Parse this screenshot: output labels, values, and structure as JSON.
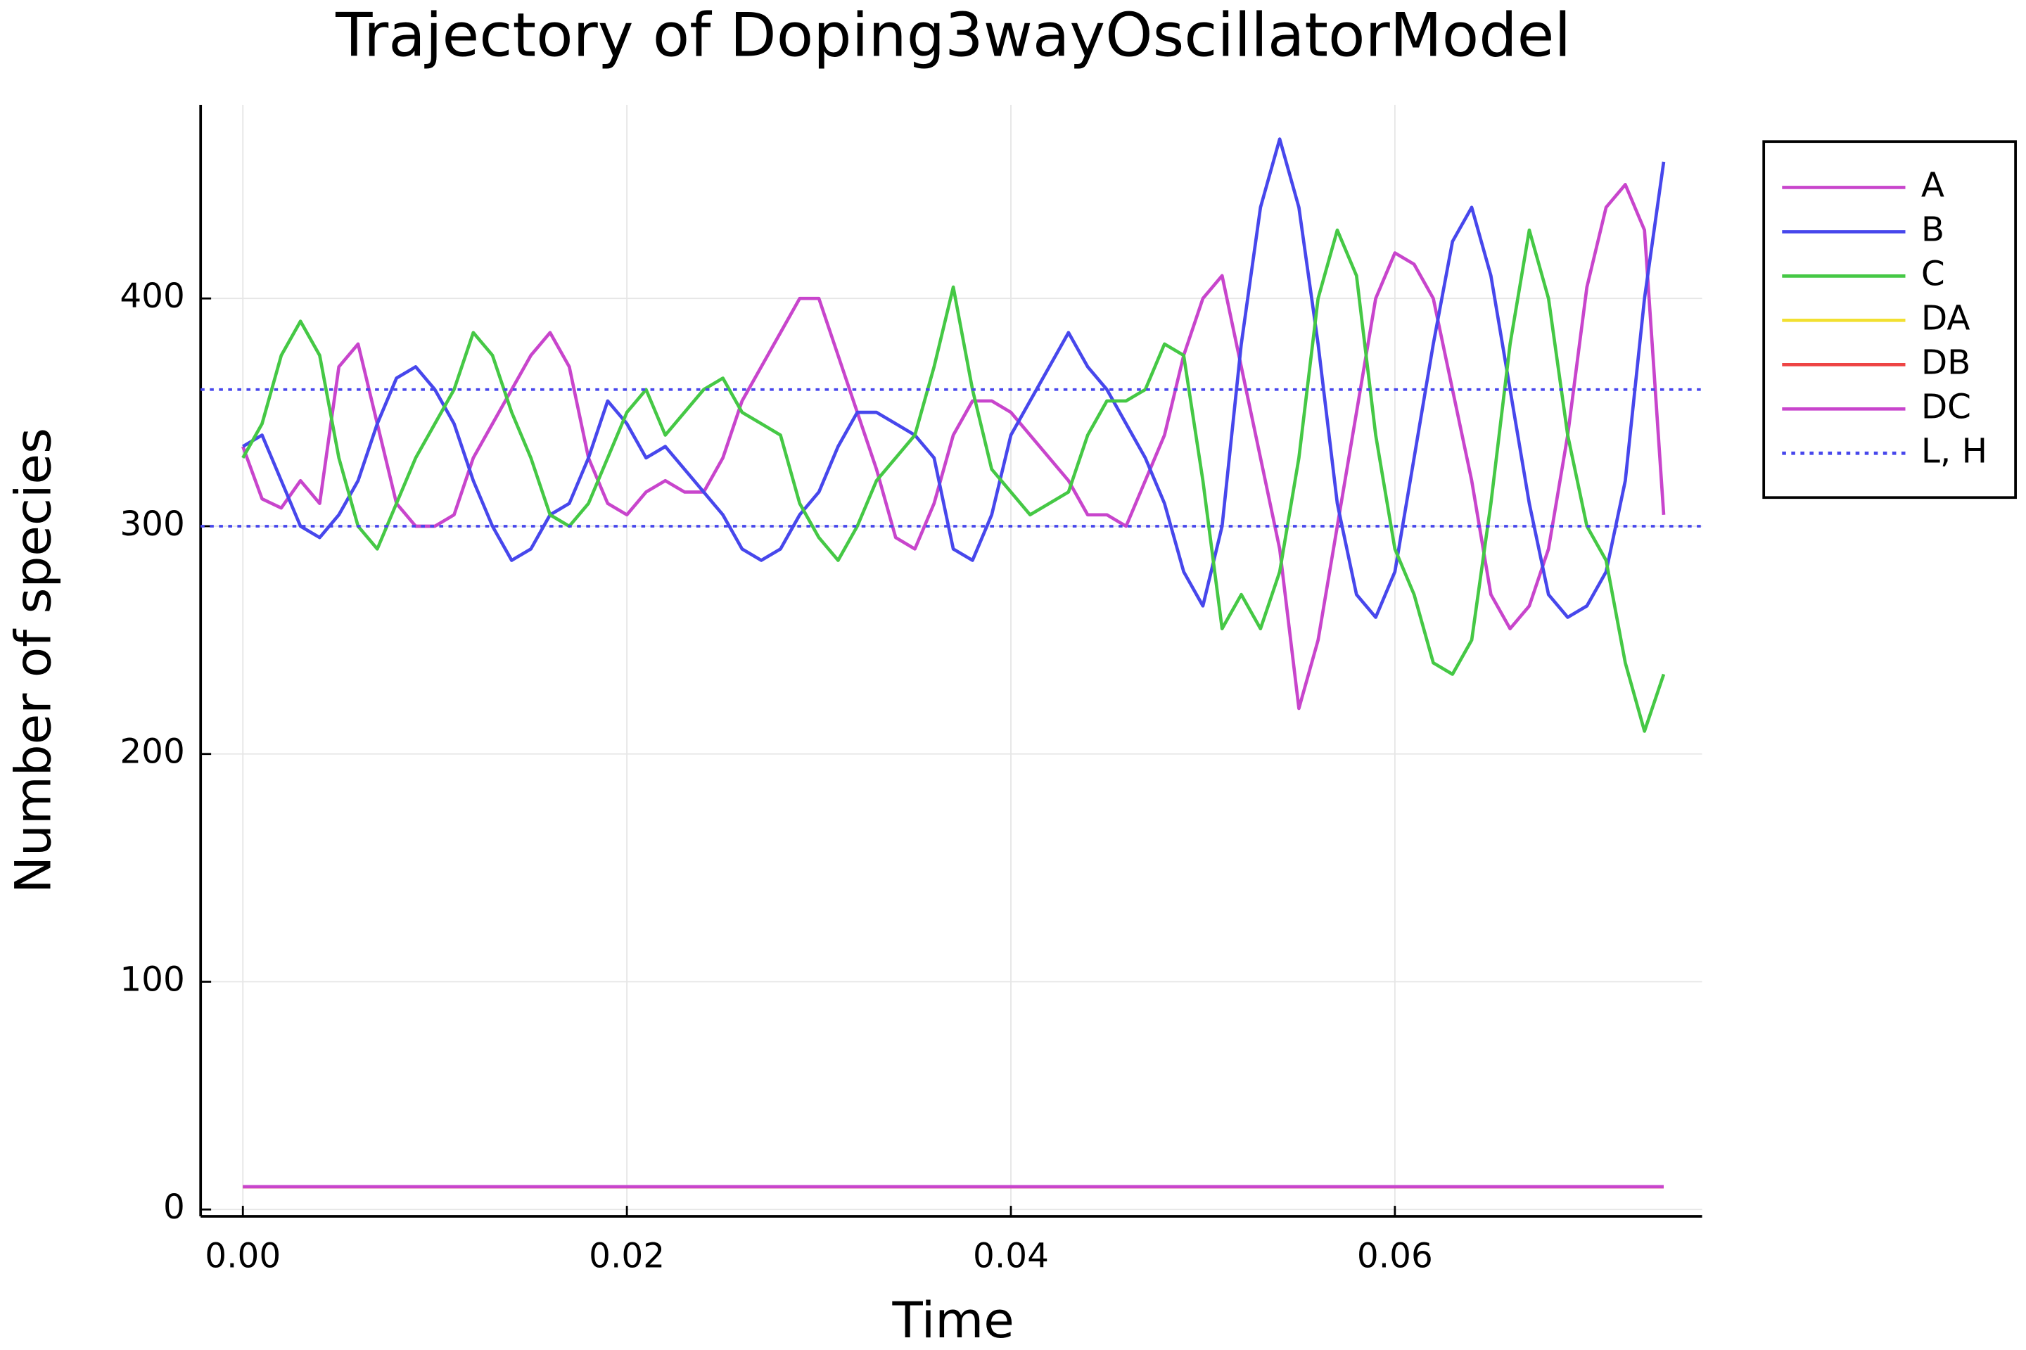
{
  "chart_data": {
    "type": "line",
    "title": "Trajectory of Doping3wayOscillatorModel",
    "x_label": "Time",
    "y_label": "Number of species",
    "x": [
      0,
      0.001,
      0.002,
      0.003,
      0.004,
      0.005,
      0.006,
      0.007,
      0.008,
      0.009,
      0.01,
      0.011,
      0.012,
      0.013,
      0.014,
      0.015,
      0.016,
      0.017,
      0.018,
      0.019,
      0.02,
      0.021,
      0.022,
      0.023,
      0.024,
      0.025,
      0.026,
      0.027,
      0.028,
      0.029,
      0.03,
      0.031,
      0.032,
      0.033,
      0.034,
      0.035,
      0.036,
      0.037,
      0.038,
      0.039,
      0.04,
      0.041,
      0.042,
      0.043,
      0.044,
      0.045,
      0.046,
      0.047,
      0.048,
      0.049,
      0.05,
      0.051,
      0.052,
      0.053,
      0.054,
      0.055,
      0.056,
      0.057,
      0.058,
      0.059,
      0.06,
      0.061,
      0.062,
      0.063,
      0.064,
      0.065,
      0.066,
      0.067,
      0.068,
      0.069,
      0.07,
      0.071,
      0.072,
      0.073,
      0.074
    ],
    "series": [
      {
        "name": "A",
        "color": "#c845cc",
        "values": [
          335,
          312,
          308,
          320,
          310,
          370,
          380,
          345,
          310,
          300,
          300,
          305,
          330,
          345,
          360,
          375,
          385,
          370,
          330,
          310,
          305,
          315,
          320,
          315,
          315,
          330,
          355,
          370,
          385,
          400,
          400,
          375,
          350,
          325,
          295,
          290,
          310,
          340,
          355,
          355,
          350,
          340,
          330,
          320,
          305,
          305,
          300,
          320,
          340,
          375,
          400,
          410,
          370,
          330,
          290,
          220,
          250,
          300,
          350,
          400,
          420,
          415,
          400,
          360,
          320,
          270,
          255,
          265,
          290,
          340,
          405,
          440,
          450,
          430,
          305
        ]
      },
      {
        "name": "B",
        "color": "#4747ec",
        "values": [
          335,
          340,
          320,
          300,
          295,
          305,
          320,
          345,
          365,
          370,
          360,
          345,
          320,
          300,
          285,
          290,
          305,
          310,
          330,
          355,
          345,
          330,
          335,
          325,
          315,
          305,
          290,
          285,
          290,
          305,
          315,
          335,
          350,
          350,
          345,
          340,
          330,
          290,
          285,
          305,
          340,
          355,
          370,
          385,
          370,
          360,
          345,
          330,
          310,
          280,
          265,
          300,
          380,
          440,
          470,
          440,
          380,
          310,
          270,
          260,
          280,
          330,
          380,
          425,
          440,
          410,
          360,
          310,
          270,
          260,
          265,
          280,
          320,
          400,
          460
        ]
      },
      {
        "name": "C",
        "color": "#45c845",
        "values": [
          330,
          345,
          375,
          390,
          375,
          330,
          300,
          290,
          310,
          330,
          345,
          360,
          385,
          375,
          350,
          330,
          305,
          300,
          310,
          330,
          350,
          360,
          340,
          350,
          360,
          365,
          350,
          345,
          340,
          310,
          295,
          285,
          300,
          320,
          330,
          340,
          370,
          405,
          360,
          325,
          315,
          305,
          310,
          315,
          340,
          355,
          355,
          360,
          380,
          375,
          320,
          255,
          270,
          255,
          280,
          330,
          400,
          430,
          410,
          340,
          290,
          270,
          240,
          235,
          250,
          310,
          380,
          430,
          400,
          340,
          300,
          285,
          240,
          210,
          235
        ]
      },
      {
        "name": "DA",
        "color": "#f2e031",
        "values": [
          10,
          10,
          10,
          10,
          10,
          10,
          10,
          10,
          10,
          10,
          10,
          10,
          10,
          10,
          10,
          10,
          10,
          10,
          10,
          10,
          10,
          10,
          10,
          10,
          10,
          10,
          10,
          10,
          10,
          10,
          10,
          10,
          10,
          10,
          10,
          10,
          10,
          10,
          10,
          10,
          10,
          10,
          10,
          10,
          10,
          10,
          10,
          10,
          10,
          10,
          10,
          10,
          10,
          10,
          10,
          10,
          10,
          10,
          10,
          10,
          10,
          10,
          10,
          10,
          10,
          10,
          10,
          10,
          10,
          10,
          10,
          10,
          10,
          10,
          10
        ]
      },
      {
        "name": "DB",
        "color": "#ee4444",
        "values": [
          10,
          10,
          10,
          10,
          10,
          10,
          10,
          10,
          10,
          10,
          10,
          10,
          10,
          10,
          10,
          10,
          10,
          10,
          10,
          10,
          10,
          10,
          10,
          10,
          10,
          10,
          10,
          10,
          10,
          10,
          10,
          10,
          10,
          10,
          10,
          10,
          10,
          10,
          10,
          10,
          10,
          10,
          10,
          10,
          10,
          10,
          10,
          10,
          10,
          10,
          10,
          10,
          10,
          10,
          10,
          10,
          10,
          10,
          10,
          10,
          10,
          10,
          10,
          10,
          10,
          10,
          10,
          10,
          10,
          10,
          10,
          10,
          10,
          10,
          10
        ]
      },
      {
        "name": "DC",
        "color": "#c845cc",
        "values": [
          10,
          10,
          10,
          10,
          10,
          10,
          10,
          10,
          10,
          10,
          10,
          10,
          10,
          10,
          10,
          10,
          10,
          10,
          10,
          10,
          10,
          10,
          10,
          10,
          10,
          10,
          10,
          10,
          10,
          10,
          10,
          10,
          10,
          10,
          10,
          10,
          10,
          10,
          10,
          10,
          10,
          10,
          10,
          10,
          10,
          10,
          10,
          10,
          10,
          10,
          10,
          10,
          10,
          10,
          10,
          10,
          10,
          10,
          10,
          10,
          10,
          10,
          10,
          10,
          10,
          10,
          10,
          10,
          10,
          10,
          10,
          10,
          10,
          10,
          10
        ]
      }
    ],
    "reference_lines": {
      "name": "L, H",
      "color": "#4747ec",
      "style": "dotted",
      "values": [
        300,
        360
      ]
    },
    "xlim": [
      -0.0022,
      0.076
    ],
    "ylim": [
      -3,
      485
    ],
    "xticks": [
      {
        "value": 0,
        "label": "0.00"
      },
      0.02,
      0.04,
      0.06
    ],
    "yticks": [
      0,
      100,
      200,
      300,
      400
    ],
    "grid": true,
    "legend": "outside-top-right"
  }
}
